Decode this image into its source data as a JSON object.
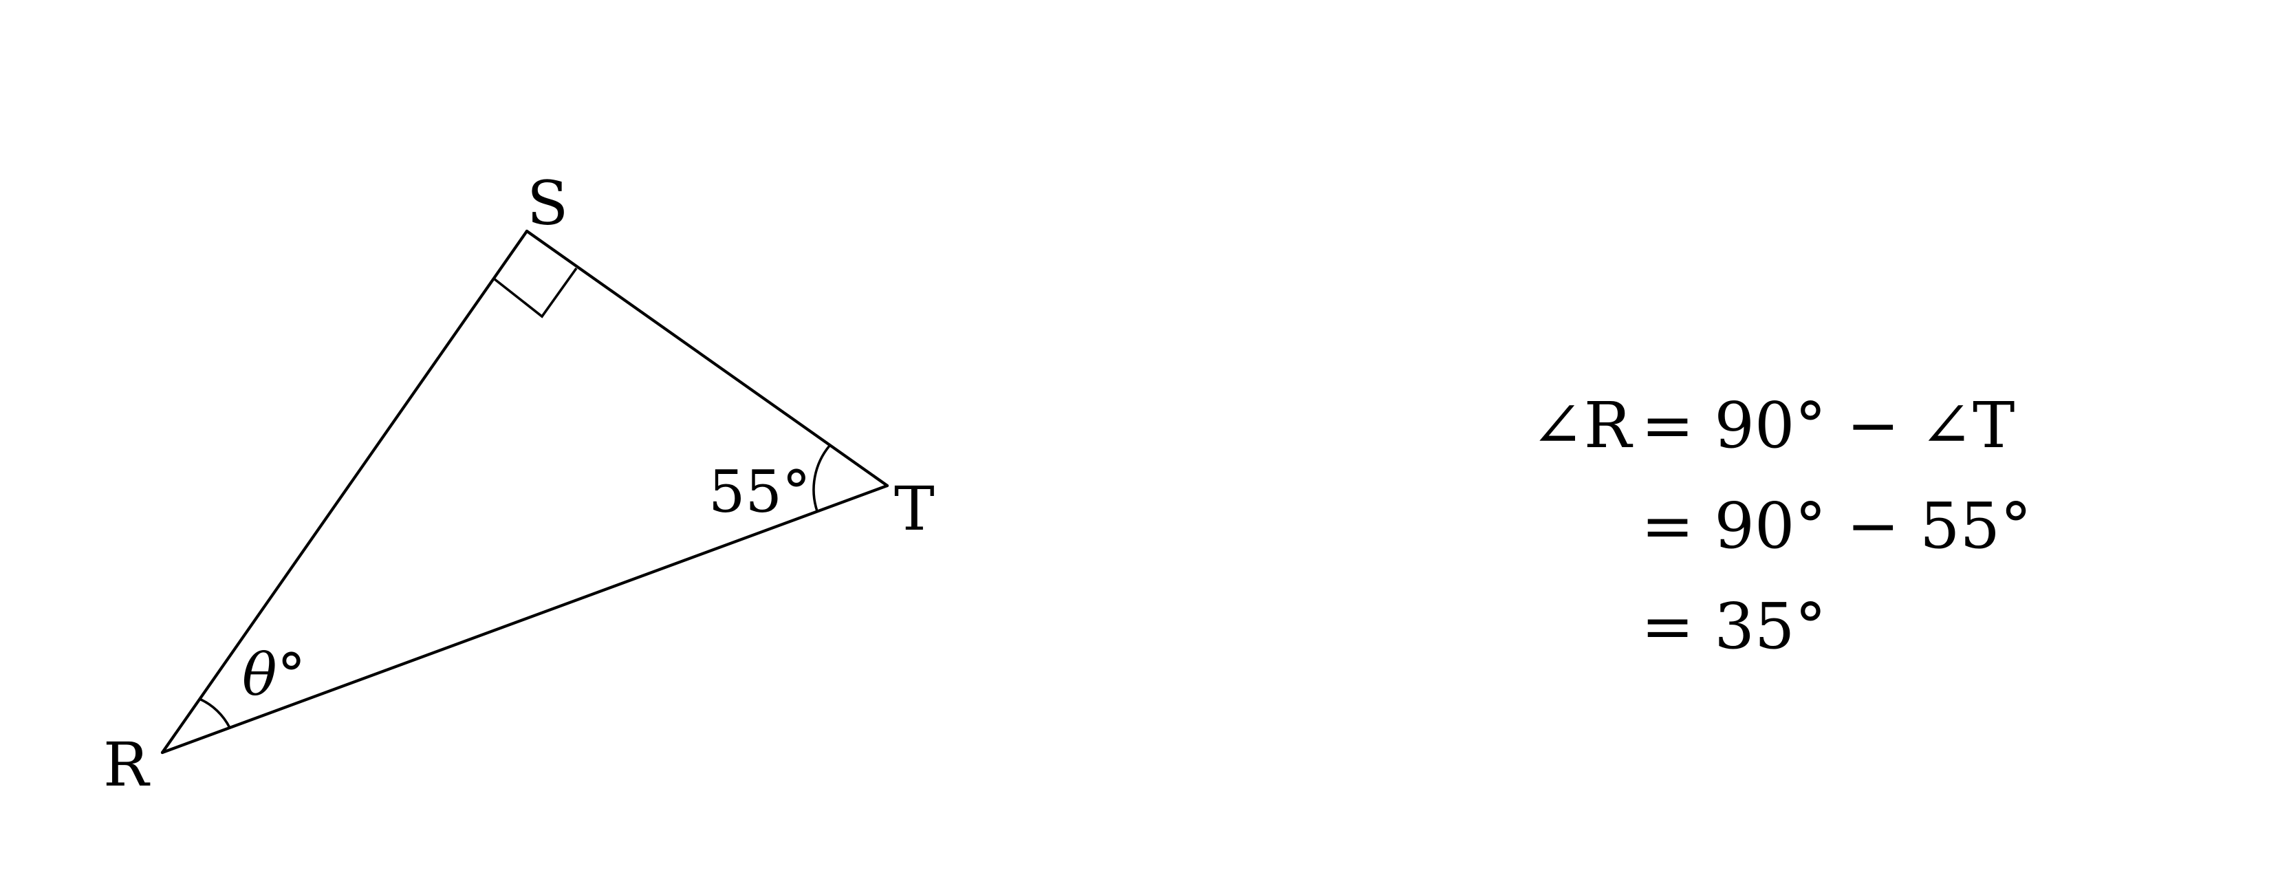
{
  "triangle": {
    "vertices": {
      "R": "R",
      "S": "S",
      "T": "T"
    },
    "angles": {
      "S": {
        "right_angle": true
      },
      "T": {
        "label": "55°",
        "value": 55
      },
      "R": {
        "label": "θ°"
      }
    }
  },
  "equations": {
    "line1": {
      "lhs": "∠R",
      "rhs": "= 90° − ∠T"
    },
    "line2": {
      "rhs": "= 90° − 55°"
    },
    "line3": {
      "rhs": "= 35°"
    }
  }
}
